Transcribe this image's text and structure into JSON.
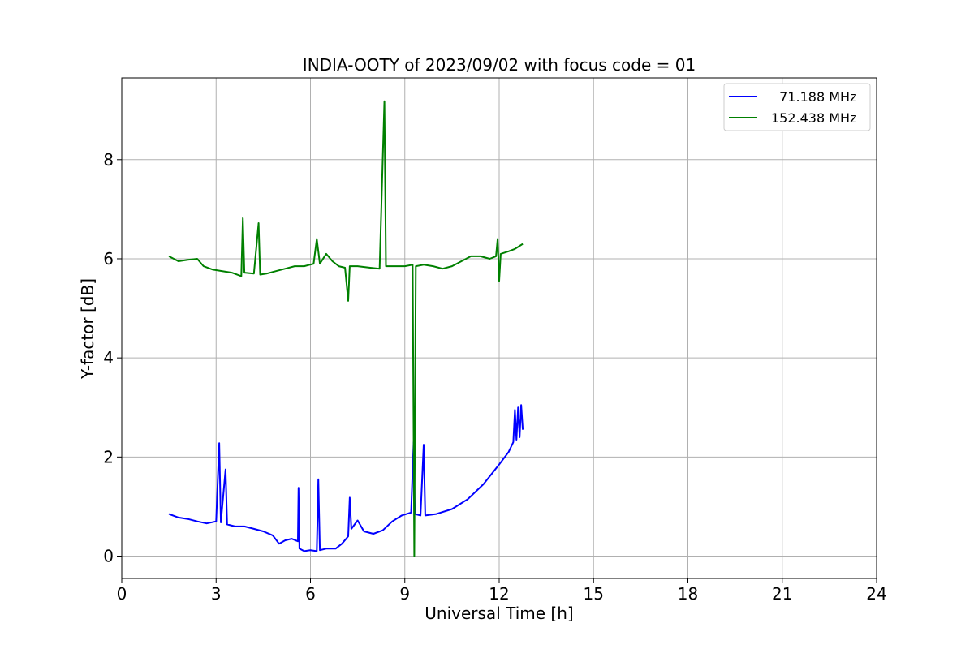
{
  "chart_data": {
    "type": "line",
    "title": "INDIA-OOTY of 2023/09/02 with focus code = 01",
    "xlabel": "Universal Time [h]",
    "ylabel": "Y-factor [dB]",
    "xlim": [
      0,
      24
    ],
    "ylim": [
      -0.45,
      9.65
    ],
    "x_ticks": [
      0,
      3,
      6,
      9,
      12,
      15,
      18,
      21,
      24
    ],
    "y_ticks": [
      0,
      2,
      4,
      6,
      8
    ],
    "grid": true,
    "legend_position": "top-right",
    "series": [
      {
        "name": "  71.188 MHz",
        "color": "#0000ff",
        "points": [
          [
            1.5,
            0.85
          ],
          [
            1.8,
            0.78
          ],
          [
            2.1,
            0.75
          ],
          [
            2.4,
            0.7
          ],
          [
            2.7,
            0.66
          ],
          [
            3.0,
            0.7
          ],
          [
            3.1,
            2.28
          ],
          [
            3.15,
            0.68
          ],
          [
            3.3,
            1.75
          ],
          [
            3.35,
            0.64
          ],
          [
            3.6,
            0.6
          ],
          [
            3.9,
            0.6
          ],
          [
            4.2,
            0.55
          ],
          [
            4.5,
            0.5
          ],
          [
            4.8,
            0.42
          ],
          [
            5.0,
            0.25
          ],
          [
            5.2,
            0.32
          ],
          [
            5.4,
            0.35
          ],
          [
            5.6,
            0.3
          ],
          [
            5.62,
            1.38
          ],
          [
            5.65,
            0.15
          ],
          [
            5.8,
            0.1
          ],
          [
            6.0,
            0.12
          ],
          [
            6.2,
            0.1
          ],
          [
            6.25,
            1.55
          ],
          [
            6.3,
            0.12
          ],
          [
            6.5,
            0.15
          ],
          [
            6.8,
            0.15
          ],
          [
            7.0,
            0.25
          ],
          [
            7.2,
            0.4
          ],
          [
            7.25,
            1.18
          ],
          [
            7.3,
            0.55
          ],
          [
            7.5,
            0.72
          ],
          [
            7.7,
            0.5
          ],
          [
            8.0,
            0.45
          ],
          [
            8.3,
            0.52
          ],
          [
            8.6,
            0.7
          ],
          [
            8.9,
            0.82
          ],
          [
            9.2,
            0.88
          ],
          [
            9.28,
            2.3
          ],
          [
            9.32,
            0.85
          ],
          [
            9.5,
            0.82
          ],
          [
            9.6,
            2.25
          ],
          [
            9.65,
            0.82
          ],
          [
            10.0,
            0.85
          ],
          [
            10.5,
            0.95
          ],
          [
            11.0,
            1.15
          ],
          [
            11.5,
            1.45
          ],
          [
            12.0,
            1.85
          ],
          [
            12.3,
            2.1
          ],
          [
            12.45,
            2.3
          ],
          [
            12.5,
            2.95
          ],
          [
            12.55,
            2.35
          ],
          [
            12.6,
            3.0
          ],
          [
            12.65,
            2.4
          ],
          [
            12.7,
            3.05
          ],
          [
            12.75,
            2.55
          ]
        ]
      },
      {
        "name": "152.438 MHz",
        "color": "#008000",
        "points": [
          [
            1.5,
            6.05
          ],
          [
            1.8,
            5.95
          ],
          [
            2.1,
            5.98
          ],
          [
            2.4,
            6.0
          ],
          [
            2.6,
            5.85
          ],
          [
            2.9,
            5.78
          ],
          [
            3.2,
            5.75
          ],
          [
            3.5,
            5.72
          ],
          [
            3.8,
            5.65
          ],
          [
            3.85,
            6.82
          ],
          [
            3.9,
            5.72
          ],
          [
            4.2,
            5.7
          ],
          [
            4.35,
            6.72
          ],
          [
            4.4,
            5.68
          ],
          [
            4.6,
            5.7
          ],
          [
            4.9,
            5.75
          ],
          [
            5.2,
            5.8
          ],
          [
            5.5,
            5.85
          ],
          [
            5.8,
            5.85
          ],
          [
            6.1,
            5.9
          ],
          [
            6.2,
            6.4
          ],
          [
            6.3,
            5.9
          ],
          [
            6.5,
            6.1
          ],
          [
            6.7,
            5.95
          ],
          [
            6.9,
            5.85
          ],
          [
            7.1,
            5.82
          ],
          [
            7.2,
            5.15
          ],
          [
            7.25,
            5.85
          ],
          [
            7.5,
            5.85
          ],
          [
            7.9,
            5.82
          ],
          [
            8.2,
            5.8
          ],
          [
            8.35,
            9.18
          ],
          [
            8.4,
            5.85
          ],
          [
            8.7,
            5.85
          ],
          [
            9.0,
            5.85
          ],
          [
            9.25,
            5.88
          ],
          [
            9.3,
            0.0
          ],
          [
            9.35,
            5.85
          ],
          [
            9.6,
            5.88
          ],
          [
            9.9,
            5.85
          ],
          [
            10.2,
            5.8
          ],
          [
            10.5,
            5.85
          ],
          [
            10.8,
            5.95
          ],
          [
            11.1,
            6.05
          ],
          [
            11.4,
            6.05
          ],
          [
            11.7,
            6.0
          ],
          [
            11.9,
            6.05
          ],
          [
            11.95,
            6.4
          ],
          [
            12.0,
            5.55
          ],
          [
            12.05,
            6.1
          ],
          [
            12.3,
            6.15
          ],
          [
            12.5,
            6.2
          ],
          [
            12.75,
            6.3
          ]
        ]
      }
    ]
  }
}
